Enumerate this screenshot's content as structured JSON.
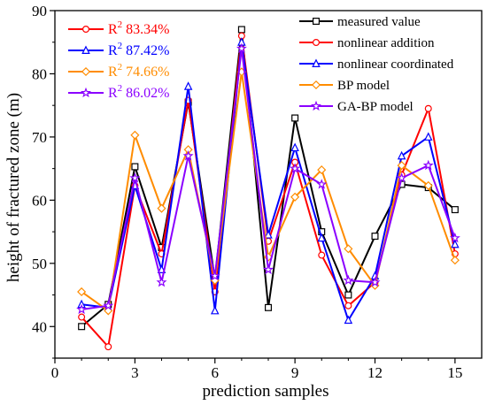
{
  "chart_data": {
    "type": "line",
    "title": "",
    "xlabel": "prediction samples",
    "ylabel": "height of fractured zone (m)",
    "xlim": [
      0,
      16
    ],
    "ylim": [
      35,
      90
    ],
    "xticks": [
      0,
      3,
      6,
      9,
      12,
      15
    ],
    "yticks": [
      40,
      50,
      60,
      70,
      80,
      90
    ],
    "grid": false,
    "legend_position": "top-right",
    "x": [
      1,
      2,
      3,
      4,
      5,
      6,
      7,
      8,
      9,
      10,
      11,
      12,
      13,
      14,
      15
    ],
    "series": [
      {
        "name": "measured value",
        "color": "#000000",
        "marker": "square",
        "values": [
          40.0,
          43.5,
          65.3,
          52.5,
          75.5,
          47.5,
          87.0,
          43.0,
          73.0,
          55.0,
          45.0,
          54.3,
          62.5,
          62.0,
          58.5
        ]
      },
      {
        "name": "nonlinear addition",
        "color": "#ff0000",
        "marker": "circle",
        "values": [
          41.5,
          36.8,
          62.3,
          51.5,
          75.8,
          45.5,
          86.0,
          53.5,
          66.0,
          51.3,
          43.3,
          47.0,
          64.0,
          74.5,
          51.5
        ]
      },
      {
        "name": "nonlinear coordinated",
        "color": "#0000ff",
        "marker": "triangle",
        "values": [
          43.5,
          43.0,
          62.3,
          49.0,
          78.0,
          42.5,
          85.0,
          54.5,
          68.3,
          54.0,
          41.0,
          48.0,
          67.0,
          70.0,
          53.0
        ]
      },
      {
        "name": "BP model",
        "color": "#ff8c00",
        "marker": "diamond",
        "values": [
          45.5,
          42.5,
          70.3,
          58.7,
          68.0,
          47.3,
          80.3,
          51.0,
          60.5,
          64.8,
          52.3,
          46.5,
          65.5,
          62.3,
          50.5
        ]
      },
      {
        "name": "GA-BP model",
        "color": "#8b00ff",
        "marker": "star",
        "values": [
          42.7,
          43.3,
          63.5,
          47.0,
          67.0,
          48.0,
          84.0,
          49.0,
          65.0,
          62.5,
          47.3,
          47.0,
          63.5,
          65.5,
          54.0
        ]
      }
    ],
    "r2_annotations": [
      {
        "label": "R",
        "sup": "2",
        "value": "83.34%",
        "color": "#ff0000"
      },
      {
        "label": "R",
        "sup": "2",
        "value": "87.42%",
        "color": "#0000ff"
      },
      {
        "label": "R",
        "sup": "2",
        "value": "74.66%",
        "color": "#ff8c00"
      },
      {
        "label": "R",
        "sup": "2",
        "value": "86.02%",
        "color": "#8b00ff"
      }
    ]
  }
}
